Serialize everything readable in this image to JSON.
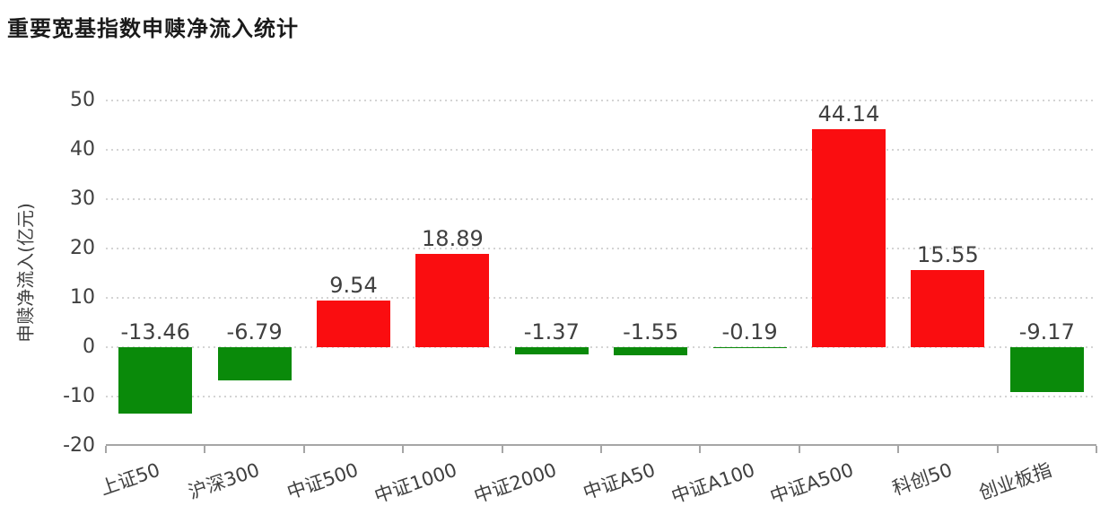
{
  "chart_data": {
    "type": "bar",
    "title": "重要宽基指数申赎净流入统计",
    "ylabel": "申赎净流入(亿元)",
    "xlabel": "",
    "categories": [
      "上证50",
      "沪深300",
      "中证500",
      "中证1000",
      "中证2000",
      "中证A50",
      "中证A100",
      "中证A500",
      "科创50",
      "创业板指"
    ],
    "values": [
      -13.46,
      -6.79,
      9.54,
      18.89,
      -1.37,
      -1.55,
      -0.19,
      44.14,
      15.55,
      -9.17
    ],
    "labels": [
      "-13.46",
      "-6.79",
      "9.54",
      "18.89",
      "-1.37",
      "-1.55",
      "-0.19",
      "44.14",
      "15.55",
      "-9.17"
    ],
    "ylim": [
      -20,
      50
    ],
    "yticks": [
      50,
      40,
      30,
      20,
      10,
      0,
      -10,
      -20
    ],
    "grid": "horizontal-dotted",
    "legend_position": "none",
    "bar_color_positive": "#fa0d10",
    "bar_color_negative": "#0a8a0a",
    "grid_color": "#d4d4d4",
    "axis_color": "#a6a6a6",
    "text_color": "#404040",
    "title_color": "#1a1a1a"
  }
}
